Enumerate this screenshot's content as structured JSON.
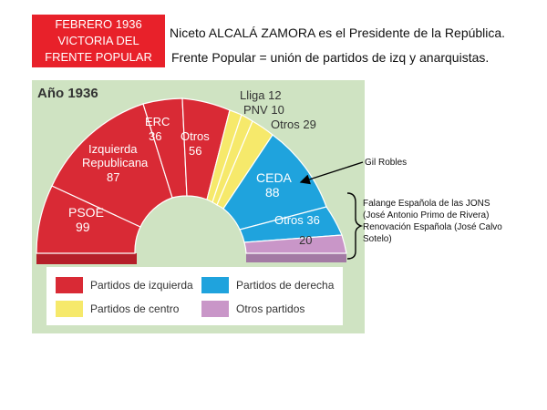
{
  "header": {
    "title_lines": [
      "FEBRERO 1936",
      "VICTORIA DEL",
      "FRENTE POPULAR"
    ],
    "line1": "Niceto ALCALÁ ZAMORA es el Presidente de la República.",
    "line2": "Frente Popular = unión de partidos de izq y anarquistas."
  },
  "panel": {
    "title": "Año 1936",
    "parties": [
      {
        "name": "PSOE",
        "seats": "99"
      },
      {
        "name": "Izquierda Republicana",
        "seats": "87"
      },
      {
        "name": "ERC",
        "seats": "36"
      },
      {
        "name": "Otros",
        "seats": "56"
      },
      {
        "name": "Lliga",
        "seats": "12"
      },
      {
        "name": "PNV",
        "seats": "10"
      },
      {
        "name": "Otros",
        "seats": "29"
      },
      {
        "name": "CEDA",
        "seats": "88"
      },
      {
        "name": "Otros",
        "seats": "36"
      },
      {
        "name": "",
        "seats": "20"
      }
    ],
    "legend": [
      {
        "label": "Partidos de izquierda",
        "color": "#d92a35"
      },
      {
        "label": "Partidos de derecha",
        "color": "#1fa3dd"
      },
      {
        "label": "Partidos de centro",
        "color": "#f6e96b"
      },
      {
        "label": "Otros partidos",
        "color": "#c996c8"
      }
    ]
  },
  "annotations": {
    "gil": "Gil Robles",
    "far_right": [
      "Falange Española de las JONS",
      "(José Antonio Primo de Rivera)",
      "Renovación Española (José Calvo",
      "Sotelo)"
    ]
  }
}
